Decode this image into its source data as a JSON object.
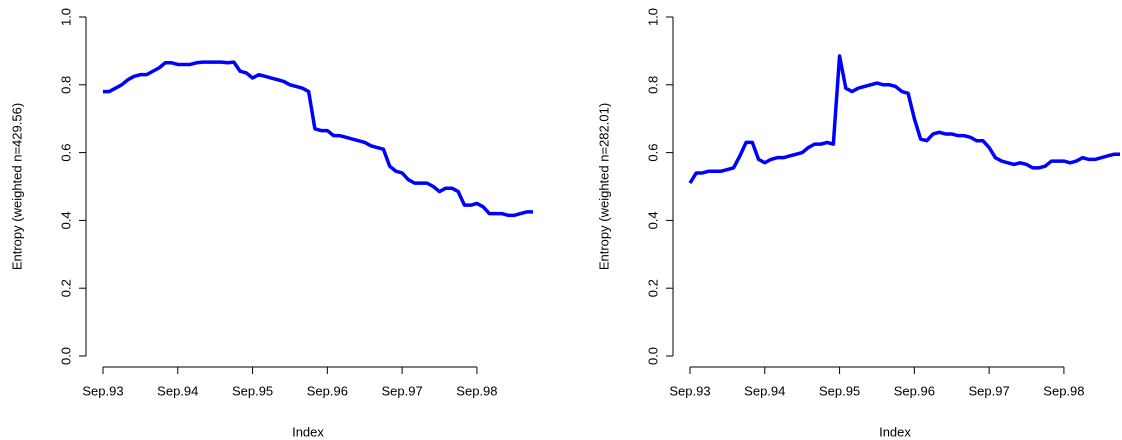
{
  "chart_data": [
    {
      "type": "line",
      "xlabel": "Index",
      "ylabel": "Entropy (weighted n=429.56)",
      "x": [
        1,
        2,
        3,
        4,
        5,
        6,
        7,
        8,
        9,
        10,
        11,
        12,
        13,
        14,
        15,
        16,
        17,
        18,
        19,
        20,
        21,
        22,
        23,
        24,
        25,
        26,
        27,
        28,
        29,
        30,
        31,
        32,
        33,
        34,
        35,
        36,
        37,
        38,
        39,
        40,
        41,
        42,
        43,
        44,
        45,
        46,
        47,
        48,
        49,
        50,
        51,
        52,
        53,
        54,
        55,
        56,
        57,
        58,
        59,
        60,
        61,
        62,
        63,
        64,
        65,
        66,
        67,
        68,
        69,
        70
      ],
      "series": [
        {
          "color": "#0000ff",
          "values": [
            0.78,
            0.78,
            0.79,
            0.8,
            0.815,
            0.825,
            0.83,
            0.83,
            0.84,
            0.85,
            0.865,
            0.865,
            0.86,
            0.86,
            0.86,
            0.865,
            0.867,
            0.867,
            0.867,
            0.867,
            0.865,
            0.867,
            0.84,
            0.835,
            0.82,
            0.83,
            0.825,
            0.82,
            0.815,
            0.81,
            0.8,
            0.795,
            0.79,
            0.78,
            0.67,
            0.665,
            0.665,
            0.65,
            0.65,
            0.645,
            0.64,
            0.635,
            0.63,
            0.62,
            0.615,
            0.61,
            0.56,
            0.545,
            0.54,
            0.52,
            0.51,
            0.51,
            0.51,
            0.5,
            0.485,
            0.495,
            0.495,
            0.485,
            0.445,
            0.445,
            0.45,
            0.44,
            0.42,
            0.42,
            0.42,
            0.415,
            0.415,
            0.42,
            0.425,
            0.425
          ]
        }
      ],
      "xlim": [
        1,
        70
      ],
      "xticks": [
        {
          "value": 1,
          "label": "Sep.93"
        },
        {
          "value": 13,
          "label": "Sep.94"
        },
        {
          "value": 25,
          "label": "Sep.95"
        },
        {
          "value": 37,
          "label": "Sep.96"
        },
        {
          "value": 49,
          "label": "Sep.97"
        },
        {
          "value": 61,
          "label": "Sep.98"
        }
      ],
      "ylim": [
        0,
        1
      ],
      "yticks": [
        {
          "value": 0,
          "label": "0.0"
        },
        0.2,
        0.4,
        0.6,
        0.8,
        {
          "value": 1,
          "label": "1.0"
        }
      ]
    },
    {
      "type": "line",
      "xlabel": "Index",
      "ylabel": "Entropy (weighted n=282.01)",
      "x": [
        1,
        2,
        3,
        4,
        5,
        6,
        7,
        8,
        9,
        10,
        11,
        12,
        13,
        14,
        15,
        16,
        17,
        18,
        19,
        20,
        21,
        22,
        23,
        24,
        25,
        26,
        27,
        28,
        29,
        30,
        31,
        32,
        33,
        34,
        35,
        36,
        37,
        38,
        39,
        40,
        41,
        42,
        43,
        44,
        45,
        46,
        47,
        48,
        49,
        50,
        51,
        52,
        53,
        54,
        55,
        56,
        57,
        58,
        59,
        60,
        61,
        62,
        63,
        64,
        65,
        66,
        67,
        68,
        69,
        70
      ],
      "series": [
        {
          "color": "#0000ff",
          "values": [
            0.51,
            0.54,
            0.54,
            0.545,
            0.545,
            0.545,
            0.55,
            0.555,
            0.59,
            0.63,
            0.63,
            0.58,
            0.57,
            0.58,
            0.585,
            0.585,
            0.59,
            0.595,
            0.6,
            0.615,
            0.625,
            0.625,
            0.63,
            0.625,
            0.885,
            0.79,
            0.78,
            0.79,
            0.795,
            0.8,
            0.805,
            0.8,
            0.8,
            0.795,
            0.78,
            0.775,
            0.7,
            0.64,
            0.635,
            0.655,
            0.66,
            0.655,
            0.655,
            0.65,
            0.65,
            0.645,
            0.635,
            0.635,
            0.615,
            0.585,
            0.575,
            0.57,
            0.565,
            0.57,
            0.565,
            0.555,
            0.555,
            0.56,
            0.575,
            0.575,
            0.575,
            0.57,
            0.575,
            0.585,
            0.58,
            0.58,
            0.585,
            0.59,
            0.595,
            0.595
          ]
        }
      ],
      "xlim": [
        1,
        70
      ],
      "xticks": [
        {
          "value": 1,
          "label": "Sep.93"
        },
        {
          "value": 13,
          "label": "Sep.94"
        },
        {
          "value": 25,
          "label": "Sep.95"
        },
        {
          "value": 37,
          "label": "Sep.96"
        },
        {
          "value": 49,
          "label": "Sep.97"
        },
        {
          "value": 61,
          "label": "Sep.98"
        }
      ],
      "ylim": [
        0,
        1
      ],
      "yticks": [
        {
          "value": 0,
          "label": "0.0"
        },
        0.2,
        0.4,
        0.6,
        0.8,
        {
          "value": 1,
          "label": "1.0"
        }
      ]
    }
  ]
}
